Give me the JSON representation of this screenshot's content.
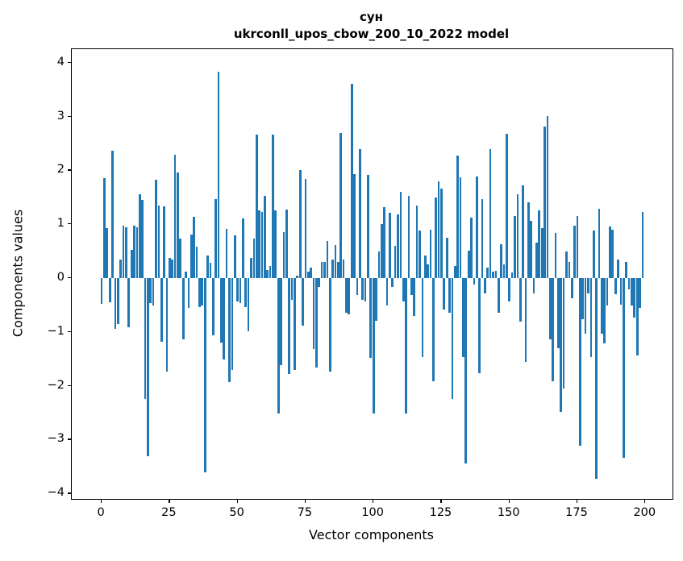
{
  "title": {
    "line1": "сун",
    "line2": "ukrconll_upos_cbow_200_10_2022 model"
  },
  "axes": {
    "xlabel": "Vector components",
    "ylabel": "Components values",
    "xticks": [
      {
        "value": 0,
        "label": "0"
      },
      {
        "value": 25,
        "label": "25"
      },
      {
        "value": 50,
        "label": "50"
      },
      {
        "value": 75,
        "label": "75"
      },
      {
        "value": 100,
        "label": "100"
      },
      {
        "value": 125,
        "label": "125"
      },
      {
        "value": 150,
        "label": "150"
      },
      {
        "value": 175,
        "label": "175"
      },
      {
        "value": 200,
        "label": "200"
      }
    ],
    "yticks": [
      {
        "value": 4,
        "label": "4"
      },
      {
        "value": 3,
        "label": "3"
      },
      {
        "value": 2,
        "label": "2"
      },
      {
        "value": 1,
        "label": "1"
      },
      {
        "value": 0,
        "label": "0"
      },
      {
        "value": -1,
        "label": "−1"
      },
      {
        "value": -2,
        "label": "−2"
      },
      {
        "value": -3,
        "label": "−3"
      },
      {
        "value": -4,
        "label": "−4"
      }
    ]
  },
  "chart_data": {
    "type": "bar",
    "title": "сун — ukrconll_upos_cbow_200_10_2022 model",
    "xlabel": "Vector components",
    "ylabel": "Components values",
    "legend": null,
    "grid": false,
    "bar_color": "#1f77b4",
    "x_range": [
      0,
      199
    ],
    "xlim": [
      -11,
      210
    ],
    "ylim": [
      -4.1,
      4.25
    ],
    "bar_width_units": 0.8,
    "values": [
      -0.48,
      1.85,
      0.93,
      -0.45,
      2.37,
      -0.95,
      -0.85,
      0.35,
      0.98,
      0.95,
      -0.91,
      0.52,
      0.97,
      0.95,
      1.55,
      1.45,
      -2.25,
      -3.3,
      -0.46,
      -0.51,
      1.82,
      1.35,
      -1.18,
      1.33,
      -1.73,
      0.38,
      0.35,
      2.29,
      1.96,
      0.73,
      -1.13,
      0.12,
      -0.55,
      0.81,
      1.14,
      0.58,
      -0.54,
      -0.51,
      -3.6,
      0.42,
      0.28,
      -1.06,
      1.46,
      3.83,
      -1.19,
      -1.51,
      0.92,
      -1.93,
      -1.7,
      0.79,
      -0.44,
      -0.46,
      1.11,
      -0.54,
      -0.99,
      0.38,
      0.73,
      2.67,
      1.25,
      1.22,
      1.53,
      0.15,
      0.22,
      2.66,
      1.25,
      -2.51,
      -1.61,
      0.86,
      1.27,
      -1.78,
      -0.41,
      -1.7,
      0.05,
      2.0,
      -0.88,
      1.84,
      0.12,
      0.19,
      -1.31,
      -1.66,
      -0.16,
      0.3,
      0.3,
      0.69,
      -1.73,
      0.35,
      0.62,
      0.3,
      2.7,
      0.35,
      -0.65,
      -0.67,
      3.61,
      1.93,
      -0.32,
      2.39,
      -0.41,
      -0.44,
      1.92,
      -1.48,
      -2.52,
      -0.79,
      0.49,
      1.0,
      1.31,
      -0.51,
      1.21,
      -0.16,
      0.6,
      1.18,
      1.6,
      -0.43,
      -2.52,
      1.53,
      -0.32,
      -0.71,
      1.35,
      0.88,
      -1.46,
      0.42,
      0.25,
      0.9,
      -1.91,
      1.5,
      1.8,
      1.66,
      -0.59,
      0.75,
      -0.64,
      -2.25,
      0.22,
      2.28,
      1.87,
      -1.46,
      -3.44,
      0.51,
      1.12,
      -0.12,
      1.88,
      -1.76,
      1.47,
      -0.28,
      0.2,
      2.39,
      0.12,
      0.13,
      -0.64,
      0.63,
      0.25,
      2.68,
      -0.43,
      0.1,
      1.15,
      1.55,
      -0.81,
      1.72,
      -1.55,
      1.4,
      1.06,
      -0.29,
      0.66,
      1.25,
      0.93,
      2.82,
      3.01,
      -1.14,
      -1.92,
      0.84,
      -1.3,
      -2.49,
      -2.05,
      0.5,
      0.3,
      -0.38,
      0.98,
      1.15,
      -3.12,
      -0.76,
      -1.03,
      -0.28,
      -1.46,
      0.89,
      -3.72,
      1.28,
      -1.03,
      -1.21,
      -0.51,
      0.96,
      0.9,
      -0.3,
      0.35,
      -0.49,
      -3.33,
      0.3,
      -0.21,
      -0.51,
      -0.73,
      -1.43,
      -0.56,
      1.23
    ]
  }
}
